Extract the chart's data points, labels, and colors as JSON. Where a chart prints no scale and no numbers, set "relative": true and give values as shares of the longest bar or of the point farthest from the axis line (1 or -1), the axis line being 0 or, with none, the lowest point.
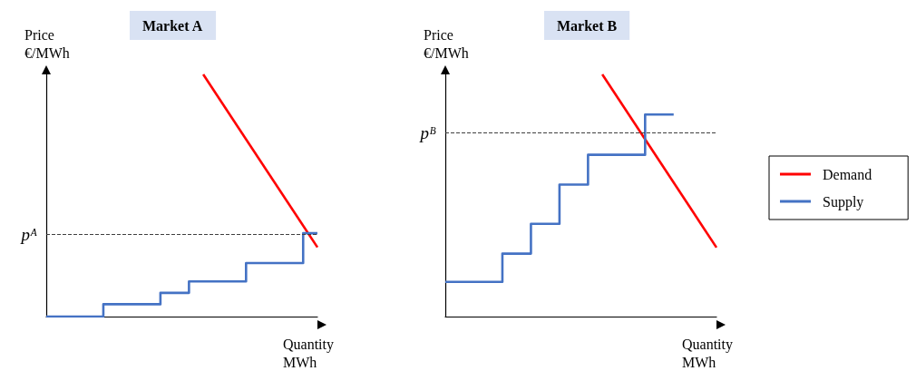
{
  "chart_data": [
    {
      "type": "line",
      "title": "Market A",
      "xlabel": "Quantity\nMWh",
      "ylabel": "Price\n€/MWh",
      "relative": true,
      "categories": [
        null,
        null,
        null,
        null,
        null,
        null,
        null,
        null,
        null,
        null,
        null,
        null,
        null,
        null,
        null,
        null,
        null,
        null,
        null,
        null
      ],
      "grid": false,
      "legend": false,
      "marker": "none",
      "ref_lines": [
        {
          "axis": "y",
          "value": 0.344,
          "label": "pᴬ",
          "color": "#404040",
          "line_style": "dashed"
        }
      ],
      "series": [
        {
          "type": "line",
          "color": "#ff0000",
          "values": [
            null,
            null,
            null,
            null,
            null,
            null,
            null,
            null,
            null,
            null,
            null,
            1,
            null,
            null,
            null,
            null,
            null,
            null,
            null,
            0.286
          ]
        },
        {
          "type": "step",
          "color": "#4472c4",
          "values": [
            0,
            0,
            0,
            0,
            0.051,
            0.051,
            0.051,
            0.051,
            0.098,
            0.098,
            0.145,
            0.145,
            0.145,
            0.145,
            0.221,
            0.221,
            0.221,
            0.221,
            0.344,
            0.344
          ]
        }
      ]
    },
    {
      "type": "line",
      "title": "Market B",
      "xlabel": "Quantity\nMWh",
      "ylabel": "Price\n€/MWh",
      "relative": true,
      "categories": [
        null,
        null,
        null,
        null,
        null,
        null,
        null,
        null,
        null,
        null,
        null,
        null,
        null,
        null,
        null,
        null,
        null,
        null,
        null,
        null
      ],
      "grid": false,
      "legend": "right",
      "marker": "none",
      "ref_lines": [
        {
          "axis": "y",
          "value": 0.762,
          "label": "pᴮ",
          "color": "#404040",
          "line_style": "dashed"
        }
      ],
      "series": [
        {
          "name": "Demand",
          "type": "line",
          "color": "#ff0000",
          "values": [
            null,
            null,
            null,
            null,
            null,
            null,
            null,
            null,
            null,
            null,
            null,
            1,
            null,
            null,
            null,
            null,
            null,
            null,
            null,
            0.285
          ]
        },
        {
          "name": "Supply",
          "type": "step",
          "color": "#4472c4",
          "values": [
            0.143,
            0.143,
            0.143,
            0.143,
            0.26,
            0.26,
            0.383,
            0.383,
            0.545,
            0.545,
            0.668,
            0.668,
            0.668,
            0.668,
            0.834,
            0.834,
            0.834,
            null,
            null,
            null
          ]
        }
      ]
    }
  ]
}
